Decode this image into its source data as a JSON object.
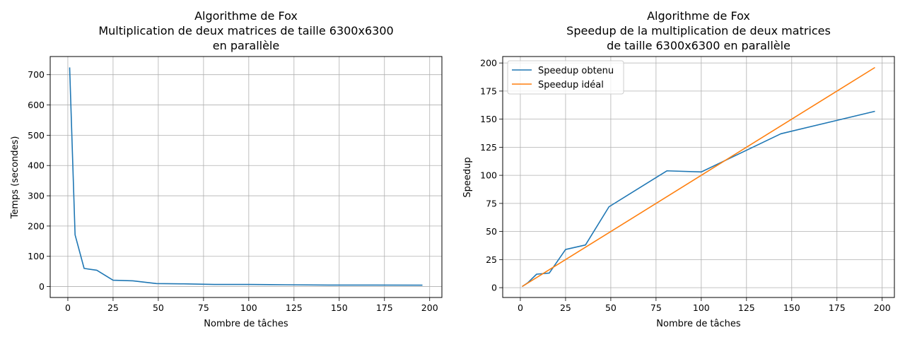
{
  "chart_data": [
    {
      "type": "line",
      "title_lines": [
        "Algorithme de Fox",
        "Multiplication de deux matrices de taille 6300x6300",
        "en parallèle"
      ],
      "xlabel": "Nombre de tâches",
      "ylabel": "Temps (secondes)",
      "xlim": [
        -9.75,
        206.75
      ],
      "ylim": [
        -36,
        760
      ],
      "xticks": [
        0,
        25,
        50,
        75,
        100,
        125,
        150,
        175,
        200
      ],
      "yticks": [
        0,
        100,
        200,
        300,
        400,
        500,
        600,
        700
      ],
      "grid": true,
      "series": [
        {
          "color": "#1f77b4",
          "x": [
            1,
            4,
            9,
            16,
            25,
            36,
            49,
            64,
            81,
            100,
            121,
            144,
            169,
            196
          ],
          "y": [
            724,
            171,
            60,
            54,
            21,
            19,
            10,
            9,
            7,
            7,
            6,
            5,
            5,
            4.6
          ]
        }
      ]
    },
    {
      "type": "line",
      "title_lines": [
        "Algorithme de Fox",
        "Speedup de la multiplication de deux matrices",
        "de taille 6300x6300 en parallèle"
      ],
      "xlabel": "Nombre de tâches",
      "ylabel": "Speedup",
      "xlim": [
        -9.75,
        206.75
      ],
      "ylim": [
        -8.75,
        205.75
      ],
      "xticks": [
        0,
        25,
        50,
        75,
        100,
        125,
        150,
        175,
        200
      ],
      "yticks": [
        0,
        25,
        50,
        75,
        100,
        125,
        150,
        175,
        200
      ],
      "grid": true,
      "legend_position": "upper-left",
      "series": [
        {
          "name": "Speedup obtenu",
          "color": "#1f77b4",
          "x": [
            1,
            4,
            9,
            16,
            25,
            36,
            49,
            81,
            100,
            144,
            196
          ],
          "y": [
            1,
            4.2,
            12,
            13,
            34,
            38,
            72,
            104,
            103,
            137,
            157
          ]
        },
        {
          "name": "Speedup idéal",
          "color": "#ff7f0e",
          "x": [
            1,
            196
          ],
          "y": [
            1,
            196
          ]
        }
      ]
    }
  ]
}
